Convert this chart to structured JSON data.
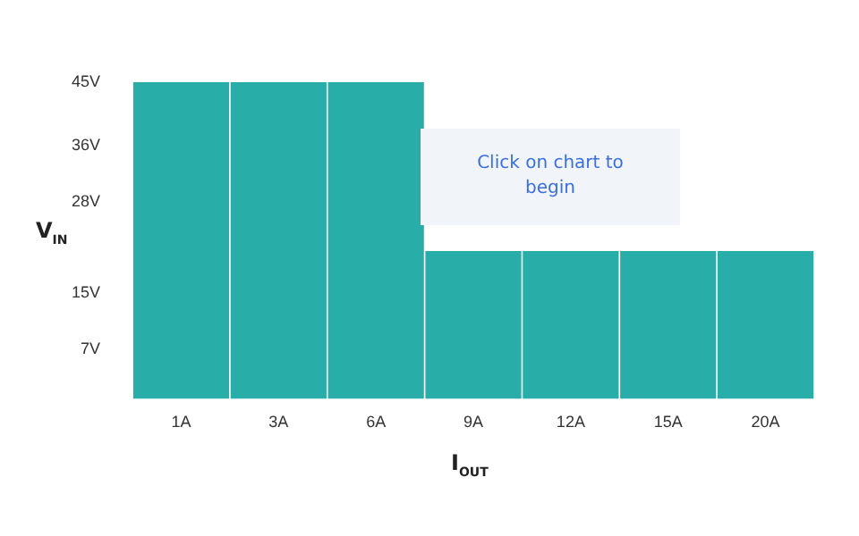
{
  "chart_data": {
    "type": "bar",
    "xlabel": "I$_{OUT}$",
    "ylabel": "V$_{IN}$",
    "categories": [
      "1A",
      "3A",
      "6A",
      "9A",
      "12A",
      "15A",
      "20A"
    ],
    "values": [
      45,
      45,
      45,
      21,
      21,
      21,
      21
    ],
    "color": "#28ada8",
    "ylim": [
      0,
      45
    ],
    "yticks": [
      {
        "value": 7,
        "label": "7V"
      },
      {
        "value": 15,
        "label": "15V"
      },
      {
        "value": 28,
        "label": "28V"
      },
      {
        "value": 36,
        "label": "36V"
      },
      {
        "value": 45,
        "label": "45V"
      }
    ],
    "grid": false,
    "legend": false,
    "annotations": [
      "Click on chart to begin"
    ]
  }
}
